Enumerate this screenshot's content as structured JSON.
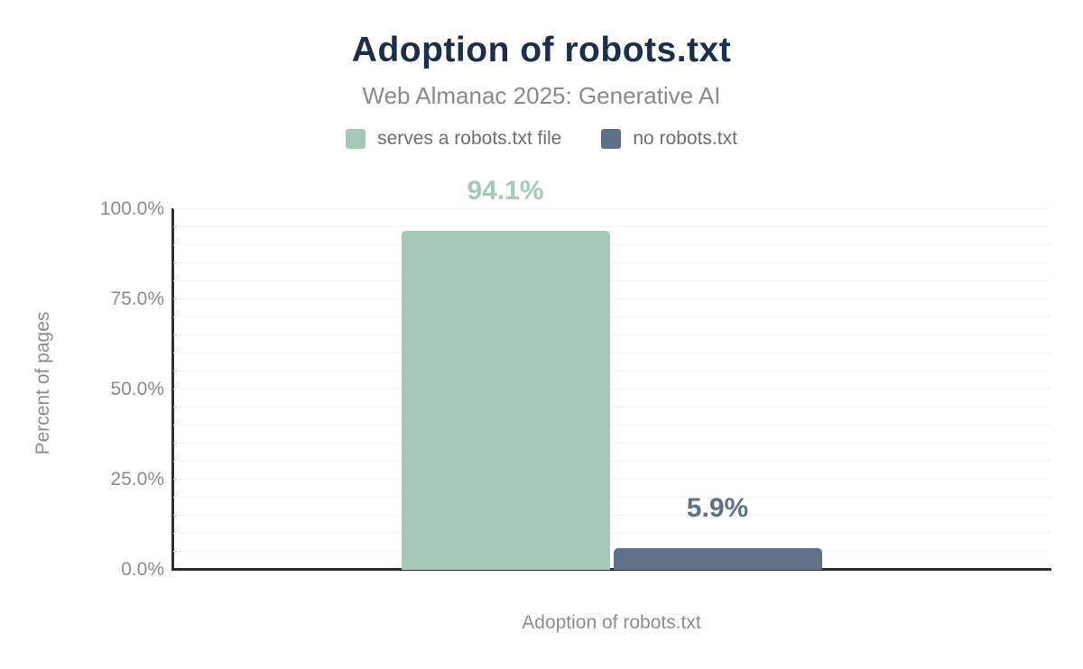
{
  "chart_data": {
    "type": "bar",
    "title": "Adoption of robots.txt",
    "subtitle": "Web Almanac 2025: Generative AI",
    "xlabel": "Adoption of robots.txt",
    "ylabel": "Percent of pages",
    "categories": [
      "Adoption of robots.txt"
    ],
    "series": [
      {
        "name": "serves a robots.txt file",
        "values": [
          94.1
        ],
        "labels": [
          "94.1%"
        ],
        "color": "#a8c8b7"
      },
      {
        "name": "no robots.txt",
        "values": [
          5.9
        ],
        "labels": [
          "5.9%"
        ],
        "color": "#5f7089"
      }
    ],
    "ylim": [
      0,
      100
    ],
    "yticks": [
      {
        "value": 0,
        "label": "0.0%"
      },
      {
        "value": 25,
        "label": "25.0%"
      },
      {
        "value": 50,
        "label": "50.0%"
      },
      {
        "value": 75,
        "label": "75.0%"
      },
      {
        "value": 100,
        "label": "100.0%"
      }
    ],
    "grid": {
      "interval": 5,
      "on": true
    },
    "legend_position": "top",
    "colors": {
      "title": "#1c2e4a",
      "subtitle": "#8a8a8a",
      "legend_text": "#6e6e6e",
      "axis_text": "#8c8c8c",
      "axis_line": "#2f2f2f",
      "gridline": "#f3f3f3",
      "background": "#ffffff"
    }
  }
}
